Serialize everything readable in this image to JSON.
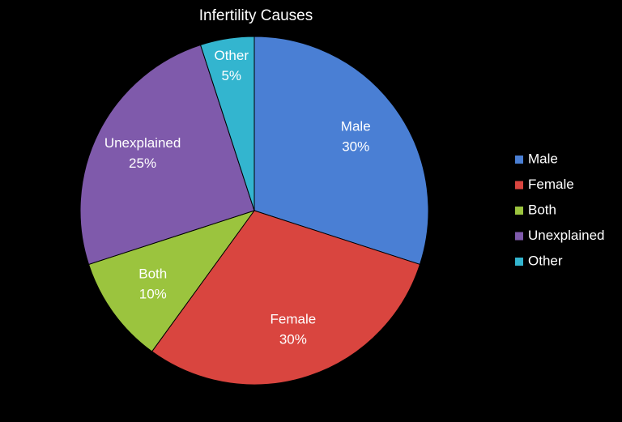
{
  "chart_data": {
    "type": "pie",
    "title": "Infertility Causes",
    "categories": [
      "Male",
      "Female",
      "Both",
      "Unexplained",
      "Other"
    ],
    "values": [
      30,
      30,
      10,
      25,
      5
    ],
    "value_labels": [
      "30%",
      "30%",
      "10%",
      "25%",
      "5%"
    ],
    "colors": [
      "#4a7fd4",
      "#d9453f",
      "#9bc43e",
      "#7f5aab",
      "#33b5cf"
    ],
    "legend": "right"
  }
}
